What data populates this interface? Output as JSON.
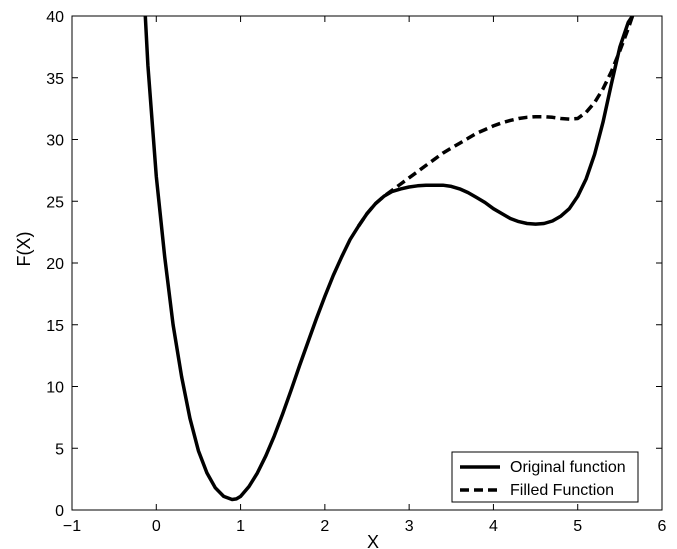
{
  "chart_data": {
    "type": "line",
    "title": "",
    "xlabel": "X",
    "ylabel": "F(X)",
    "xlim": [
      -1,
      6
    ],
    "ylim": [
      0,
      40
    ],
    "xticks": [
      -1,
      0,
      1,
      2,
      3,
      4,
      5,
      6
    ],
    "yticks": [
      0,
      5,
      10,
      15,
      20,
      25,
      30,
      35,
      40
    ],
    "grid": false,
    "legend_position": "bottom-right",
    "series": [
      {
        "name": "Original function",
        "style": "solid",
        "color": "#000000",
        "x": [
          -0.13,
          -0.1,
          0.0,
          0.1,
          0.2,
          0.3,
          0.4,
          0.5,
          0.6,
          0.7,
          0.8,
          0.9,
          0.95,
          1.0,
          1.1,
          1.2,
          1.3,
          1.4,
          1.5,
          1.6,
          1.7,
          1.8,
          1.9,
          2.0,
          2.1,
          2.2,
          2.3,
          2.4,
          2.5,
          2.6,
          2.7,
          2.8,
          2.9,
          3.0,
          3.1,
          3.2,
          3.3,
          3.4,
          3.5,
          3.6,
          3.7,
          3.8,
          3.9,
          4.0,
          4.1,
          4.2,
          4.3,
          4.4,
          4.5,
          4.6,
          4.7,
          4.8,
          4.9,
          5.0,
          5.1,
          5.2,
          5.3,
          5.4,
          5.5,
          5.6,
          5.65
        ],
        "y": [
          40.0,
          36.0,
          27.0,
          20.5,
          15.0,
          10.8,
          7.4,
          4.8,
          3.0,
          1.8,
          1.1,
          0.85,
          0.9,
          1.1,
          1.9,
          3.0,
          4.4,
          6.0,
          7.8,
          9.7,
          11.7,
          13.6,
          15.5,
          17.3,
          19.0,
          20.5,
          21.9,
          23.0,
          24.0,
          24.8,
          25.4,
          25.8,
          26.0,
          26.15,
          26.25,
          26.3,
          26.3,
          26.3,
          26.2,
          26.0,
          25.7,
          25.3,
          24.9,
          24.4,
          24.0,
          23.6,
          23.35,
          23.2,
          23.15,
          23.2,
          23.4,
          23.8,
          24.4,
          25.4,
          26.8,
          28.8,
          31.4,
          34.5,
          37.5,
          39.5,
          40.0
        ]
      },
      {
        "name": "Filled Function",
        "style": "dashed",
        "color": "#000000",
        "x": [
          2.4,
          2.5,
          2.6,
          2.7,
          2.8,
          2.9,
          3.0,
          3.1,
          3.2,
          3.3,
          3.4,
          3.5,
          3.6,
          3.7,
          3.8,
          3.9,
          4.0,
          4.1,
          4.2,
          4.3,
          4.4,
          4.5,
          4.6,
          4.7,
          4.8,
          4.9,
          5.0,
          5.1,
          5.2,
          5.3,
          5.4,
          5.5,
          5.6,
          5.65
        ],
        "y": [
          23.0,
          24.0,
          24.8,
          25.4,
          25.9,
          26.4,
          26.9,
          27.4,
          27.9,
          28.4,
          28.9,
          29.3,
          29.7,
          30.1,
          30.5,
          30.8,
          31.1,
          31.35,
          31.55,
          31.7,
          31.8,
          31.85,
          31.85,
          31.8,
          31.7,
          31.65,
          31.7,
          32.2,
          33.0,
          34.1,
          35.5,
          37.2,
          39.0,
          40.0
        ]
      }
    ]
  }
}
